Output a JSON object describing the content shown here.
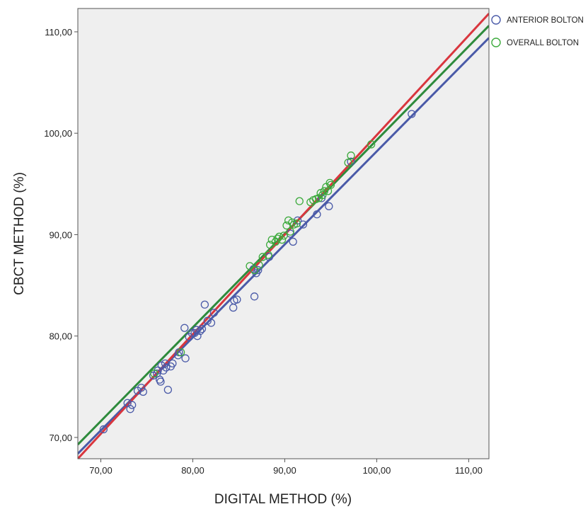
{
  "chart_data": {
    "type": "scatter",
    "xlabel": "DIGITAL METHOD (%)",
    "ylabel": "CBCT METHOD (%)",
    "xlim": [
      67.5,
      112.2
    ],
    "ylim": [
      67.9,
      112.3
    ],
    "x_ticks": [
      "70,00",
      "80,00",
      "90,00",
      "100,00",
      "110,00"
    ],
    "x_tick_values": [
      70,
      80,
      90,
      100,
      110
    ],
    "y_ticks": [
      "70,00",
      "80,00",
      "90,00",
      "100,00",
      "110,00"
    ],
    "y_tick_values": [
      70,
      80,
      90,
      100,
      110
    ],
    "grid": false,
    "legend_position": "right-outside-top",
    "plot_background": "#efefef",
    "series": [
      {
        "name": "ANTERIOR BOLTON",
        "color": "#4a5aa8",
        "points": [
          [
            70.3,
            70.8
          ],
          [
            72.9,
            73.4
          ],
          [
            73.2,
            72.8
          ],
          [
            73.4,
            73.2
          ],
          [
            74.0,
            74.6
          ],
          [
            74.4,
            74.9
          ],
          [
            74.6,
            74.5
          ],
          [
            75.7,
            76.1
          ],
          [
            76.1,
            76.3
          ],
          [
            76.2,
            76.6
          ],
          [
            76.4,
            75.7
          ],
          [
            76.5,
            75.5
          ],
          [
            76.6,
            77.1
          ],
          [
            76.8,
            76.6
          ],
          [
            77.0,
            77.3
          ],
          [
            77.1,
            76.9
          ],
          [
            77.3,
            74.7
          ],
          [
            77.6,
            77.0
          ],
          [
            77.8,
            77.3
          ],
          [
            78.4,
            78.1
          ],
          [
            78.5,
            78.4
          ],
          [
            79.1,
            80.8
          ],
          [
            79.2,
            77.8
          ],
          [
            79.6,
            79.9
          ],
          [
            79.9,
            80.3
          ],
          [
            80.2,
            80.3
          ],
          [
            80.4,
            80.6
          ],
          [
            80.5,
            80.0
          ],
          [
            80.8,
            80.5
          ],
          [
            81.0,
            80.7
          ],
          [
            81.3,
            83.1
          ],
          [
            81.6,
            81.5
          ],
          [
            82.0,
            81.3
          ],
          [
            82.3,
            82.3
          ],
          [
            84.4,
            82.8
          ],
          [
            84.5,
            83.5
          ],
          [
            84.8,
            83.6
          ],
          [
            86.6,
            86.6
          ],
          [
            86.7,
            83.9
          ],
          [
            86.9,
            86.2
          ],
          [
            87.1,
            86.5
          ],
          [
            88.3,
            87.8
          ],
          [
            90.6,
            90.1
          ],
          [
            90.9,
            89.3
          ],
          [
            91.4,
            91.4
          ],
          [
            92.0,
            91.0
          ],
          [
            93.5,
            92.0
          ],
          [
            94.0,
            93.6
          ],
          [
            94.8,
            92.8
          ],
          [
            97.2,
            97.2
          ],
          [
            103.8,
            101.9
          ]
        ]
      },
      {
        "name": "OVERALL BOLTON",
        "color": "#3caa3c",
        "points": [
          [
            75.8,
            76.3
          ],
          [
            78.7,
            78.4
          ],
          [
            86.2,
            86.9
          ],
          [
            86.7,
            86.5
          ],
          [
            87.2,
            87.0
          ],
          [
            87.6,
            87.8
          ],
          [
            88.2,
            88.0
          ],
          [
            88.4,
            89.0
          ],
          [
            88.6,
            89.5
          ],
          [
            89.0,
            89.3
          ],
          [
            89.2,
            89.6
          ],
          [
            89.4,
            89.8
          ],
          [
            89.7,
            89.5
          ],
          [
            89.9,
            89.9
          ],
          [
            90.2,
            90.9
          ],
          [
            90.4,
            91.4
          ],
          [
            90.6,
            90.3
          ],
          [
            90.8,
            91.2
          ],
          [
            91.0,
            91.0
          ],
          [
            91.3,
            91.1
          ],
          [
            91.6,
            93.3
          ],
          [
            92.8,
            93.2
          ],
          [
            93.1,
            93.4
          ],
          [
            93.4,
            93.5
          ],
          [
            93.7,
            93.6
          ],
          [
            93.9,
            94.1
          ],
          [
            94.1,
            93.9
          ],
          [
            94.3,
            94.3
          ],
          [
            94.5,
            94.7
          ],
          [
            94.7,
            94.3
          ],
          [
            94.9,
            95.1
          ],
          [
            95.0,
            94.9
          ],
          [
            96.9,
            97.1
          ],
          [
            97.2,
            97.8
          ],
          [
            99.4,
            98.9
          ]
        ]
      }
    ],
    "fit_lines": [
      {
        "color": "#4a5aa8",
        "x": [
          67.5,
          112.2
        ],
        "y": [
          68.4,
          109.4
        ]
      },
      {
        "color": "#2e8b3c",
        "x": [
          67.5,
          112.2
        ],
        "y": [
          69.3,
          110.6
        ]
      },
      {
        "color": "#d9363e",
        "x": [
          67.5,
          112.2
        ],
        "y": [
          67.9,
          111.8
        ]
      }
    ]
  }
}
